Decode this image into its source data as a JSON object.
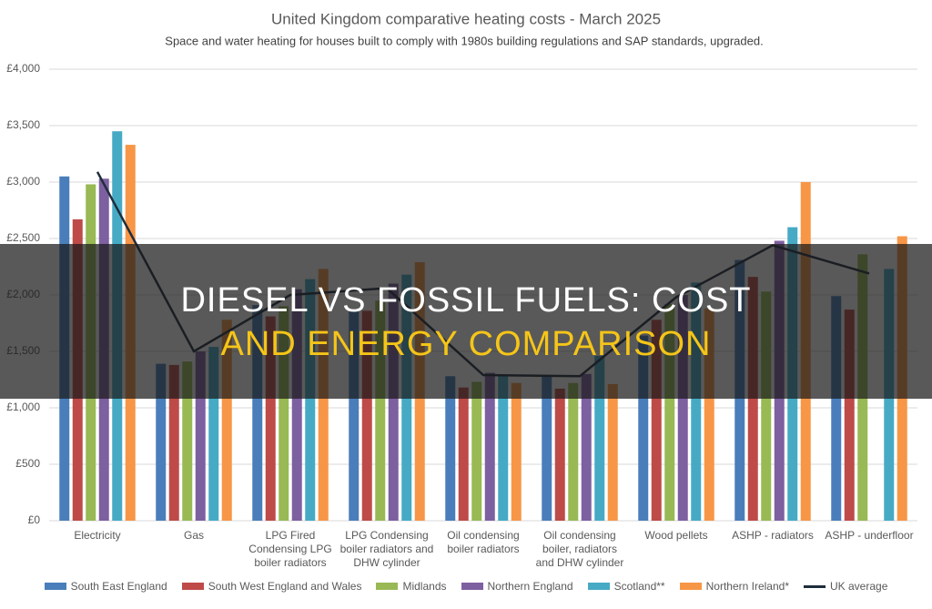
{
  "chart_data": {
    "type": "bar",
    "title": "United Kingdom comparative heating costs - March 2025",
    "subtitle": "Space and water heating for houses built to comply with 1980s building regulations and SAP standards, upgraded.",
    "categories": [
      "Electricity",
      "Gas",
      "LPG Fired Condensing LPG boiler radiators",
      "LPG Condensing boiler radiators and DHW cylinder",
      "Oil condensing boiler radiators",
      "Oil condensing boiler, radiators and DHW cylinder",
      "Wood pellets",
      "ASHP - radiators",
      "ASHP -  underfloor"
    ],
    "series": [
      {
        "name": "South East England",
        "color": "#4a7ebb",
        "values": [
          3050,
          1390,
          1910,
          1870,
          1280,
          1280,
          1640,
          2310,
          1990
        ]
      },
      {
        "name": "South West England and Wales",
        "color": "#be4b48",
        "values": [
          2670,
          1380,
          1810,
          1860,
          1180,
          1170,
          1780,
          2160,
          1870
        ]
      },
      {
        "name": "Midlands",
        "color": "#98b954",
        "values": [
          2980,
          1410,
          1900,
          1950,
          1230,
          1220,
          1920,
          2030,
          2360
        ]
      },
      {
        "name": "Northern England",
        "color": "#7d60a0",
        "values": [
          3030,
          1500,
          2050,
          2100,
          1310,
          1300,
          2000,
          2480,
          null
        ]
      },
      {
        "name": "Scotland**",
        "color": "#46aac5",
        "values": [
          3450,
          1540,
          2140,
          2180,
          1290,
          1460,
          2110,
          2600,
          2230
        ]
      },
      {
        "name": "Northern Ireland*",
        "color": "#f79646",
        "values": [
          3330,
          1780,
          2230,
          2290,
          1220,
          1210,
          1880,
          3000,
          2520
        ]
      },
      {
        "name": "UK average",
        "color": "#1f2d3d",
        "type": "line",
        "values": [
          3090,
          1500,
          2000,
          2060,
          1290,
          1280,
          1980,
          2440,
          2190
        ]
      }
    ],
    "ylim": [
      0,
      4000
    ],
    "yticks": [
      {
        "value": 0,
        "label": "£0"
      },
      {
        "value": 500,
        "label": "£500"
      },
      {
        "value": 1000,
        "label": "£1,000"
      },
      {
        "value": 1500,
        "label": "£1,500"
      },
      {
        "value": 2000,
        "label": "£2,000"
      },
      {
        "value": 2500,
        "label": "£2,500"
      },
      {
        "value": 3000,
        "label": "£3,000"
      },
      {
        "value": 3500,
        "label": "£3,500"
      },
      {
        "value": 4000,
        "label": "£4,000"
      }
    ],
    "grid": true
  },
  "overlay": {
    "line1": "DIESEL VS FOSSIL FUELS: COST",
    "line2": "AND ENERGY COMPARISON"
  }
}
